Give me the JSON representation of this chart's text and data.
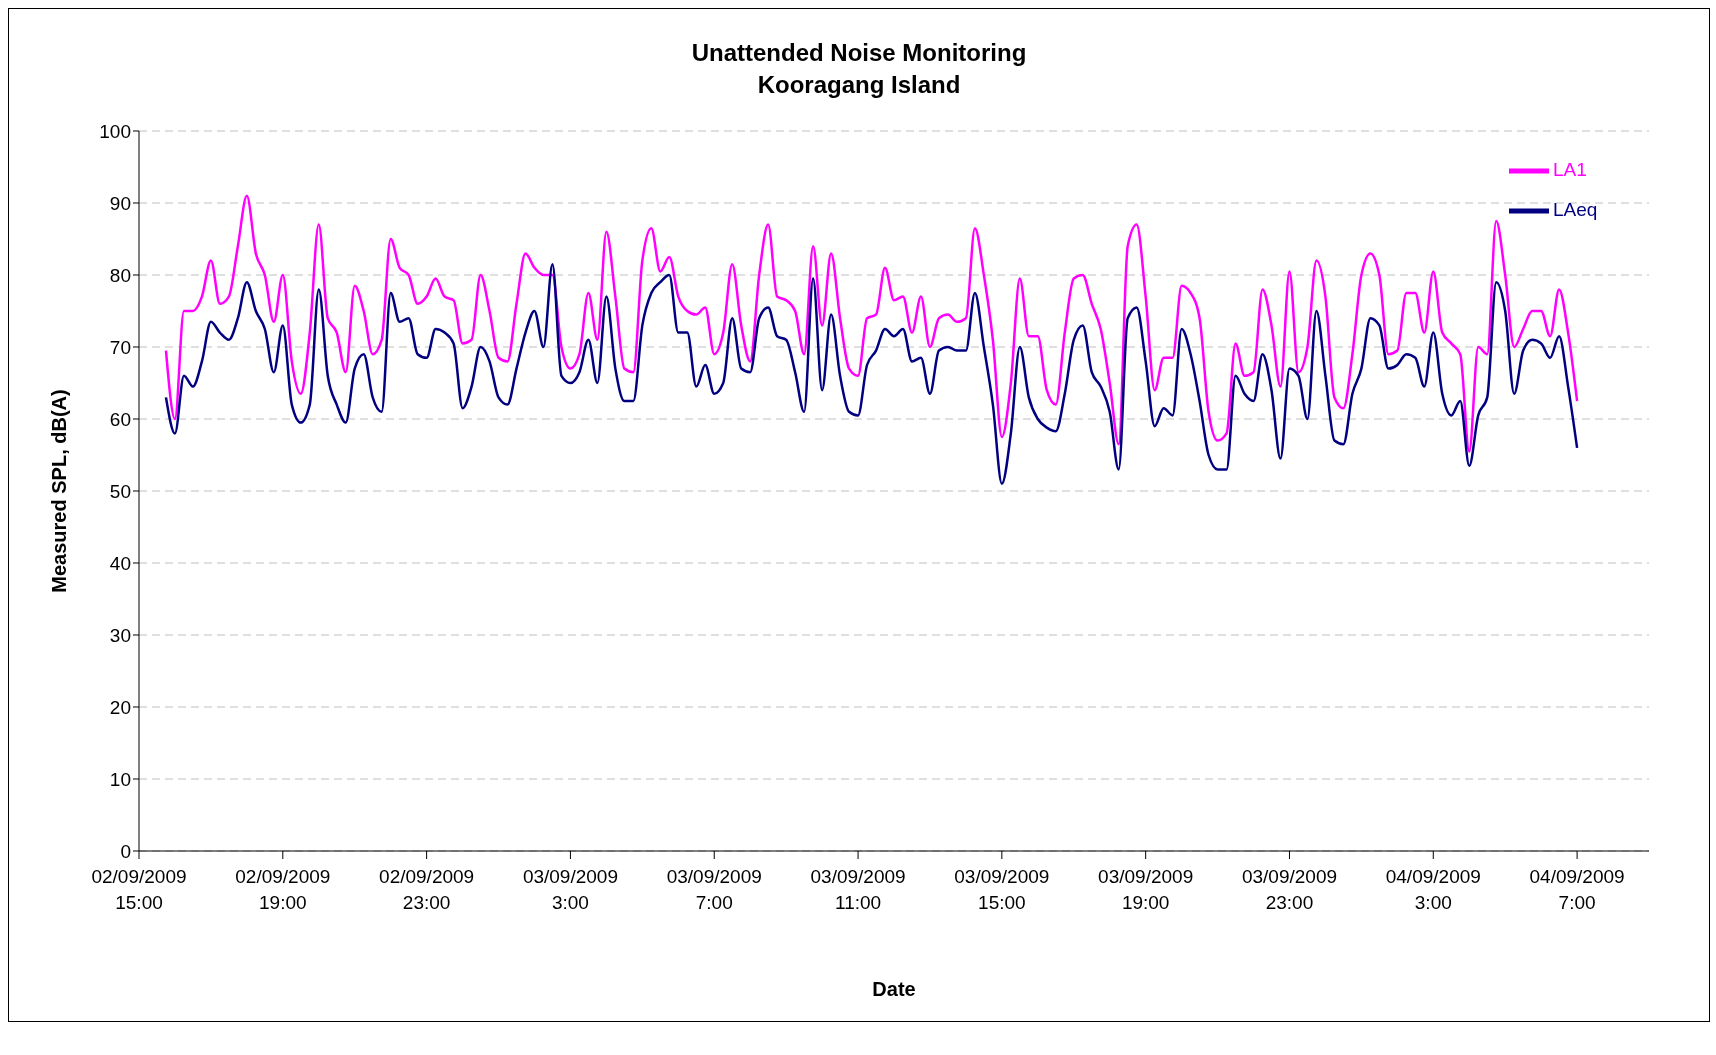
{
  "chart_data": {
    "type": "line",
    "title": "Unattended Noise Monitoring",
    "subtitle": "Kooragang Island",
    "xlabel": "Date",
    "ylabel": "Measured SPL, dB(A)",
    "x": [
      "2009-09-02T15:45",
      "2009-09-02T16:00",
      "2009-09-02T16:15",
      "2009-09-02T16:30",
      "2009-09-02T16:45",
      "2009-09-02T17:00",
      "2009-09-02T17:15",
      "2009-09-02T17:30",
      "2009-09-02T17:45",
      "2009-09-02T18:00",
      "2009-09-02T18:15",
      "2009-09-02T18:30",
      "2009-09-02T18:45",
      "2009-09-02T19:00",
      "2009-09-02T19:15",
      "2009-09-02T19:30",
      "2009-09-02T19:45",
      "2009-09-02T20:00",
      "2009-09-02T20:15",
      "2009-09-02T20:30",
      "2009-09-02T20:45",
      "2009-09-02T21:00",
      "2009-09-02T21:15",
      "2009-09-02T21:30",
      "2009-09-02T21:45",
      "2009-09-02T22:00",
      "2009-09-02T22:15",
      "2009-09-02T22:30",
      "2009-09-02T22:45",
      "2009-09-02T23:00",
      "2009-09-02T23:15",
      "2009-09-02T23:30",
      "2009-09-02T23:45",
      "2009-09-03T00:00",
      "2009-09-03T00:15",
      "2009-09-03T00:30",
      "2009-09-03T00:45",
      "2009-09-03T01:00",
      "2009-09-03T01:15",
      "2009-09-03T01:30",
      "2009-09-03T01:45",
      "2009-09-03T02:00",
      "2009-09-03T02:15",
      "2009-09-03T02:30",
      "2009-09-03T02:45",
      "2009-09-03T03:00",
      "2009-09-03T03:15",
      "2009-09-03T03:30",
      "2009-09-03T03:45",
      "2009-09-03T04:00",
      "2009-09-03T04:15",
      "2009-09-03T04:30",
      "2009-09-03T04:45",
      "2009-09-03T05:00",
      "2009-09-03T05:15",
      "2009-09-03T05:30",
      "2009-09-03T05:45",
      "2009-09-03T06:00",
      "2009-09-03T06:15",
      "2009-09-03T06:30",
      "2009-09-03T06:45",
      "2009-09-03T07:00",
      "2009-09-03T07:15",
      "2009-09-03T07:30",
      "2009-09-03T07:45",
      "2009-09-03T08:00",
      "2009-09-03T08:15",
      "2009-09-03T08:30",
      "2009-09-03T08:45",
      "2009-09-03T09:00",
      "2009-09-03T09:15",
      "2009-09-03T09:30",
      "2009-09-03T09:45",
      "2009-09-03T10:00",
      "2009-09-03T10:15",
      "2009-09-03T10:30",
      "2009-09-03T10:45",
      "2009-09-03T11:00",
      "2009-09-03T11:15",
      "2009-09-03T11:30",
      "2009-09-03T11:45",
      "2009-09-03T12:00",
      "2009-09-03T12:15",
      "2009-09-03T12:30",
      "2009-09-03T12:45",
      "2009-09-03T13:00",
      "2009-09-03T13:15",
      "2009-09-03T13:30",
      "2009-09-03T13:45",
      "2009-09-03T14:00",
      "2009-09-03T14:15",
      "2009-09-03T14:30",
      "2009-09-03T14:45",
      "2009-09-03T15:00",
      "2009-09-03T15:15",
      "2009-09-03T15:30",
      "2009-09-03T15:45",
      "2009-09-03T16:00",
      "2009-09-03T16:15",
      "2009-09-03T16:30",
      "2009-09-03T16:45",
      "2009-09-03T17:00",
      "2009-09-03T17:15",
      "2009-09-03T17:30",
      "2009-09-03T17:45",
      "2009-09-03T18:00",
      "2009-09-03T18:15",
      "2009-09-03T18:30",
      "2009-09-03T18:45",
      "2009-09-03T19:00",
      "2009-09-03T19:15",
      "2009-09-03T19:30",
      "2009-09-03T19:45",
      "2009-09-03T20:00",
      "2009-09-03T20:15",
      "2009-09-03T20:30",
      "2009-09-03T20:45",
      "2009-09-03T21:00",
      "2009-09-03T21:15",
      "2009-09-03T21:30",
      "2009-09-03T21:45",
      "2009-09-03T22:00",
      "2009-09-03T22:15",
      "2009-09-03T22:30",
      "2009-09-03T22:45",
      "2009-09-03T23:00",
      "2009-09-03T23:15",
      "2009-09-03T23:30",
      "2009-09-03T23:45",
      "2009-09-04T00:00",
      "2009-09-04T00:15",
      "2009-09-04T00:30",
      "2009-09-04T00:45",
      "2009-09-04T01:00",
      "2009-09-04T01:15",
      "2009-09-04T01:30",
      "2009-09-04T01:45",
      "2009-09-04T02:00",
      "2009-09-04T02:15",
      "2009-09-04T02:30",
      "2009-09-04T02:45",
      "2009-09-04T03:00",
      "2009-09-04T03:15",
      "2009-09-04T03:30",
      "2009-09-04T03:45",
      "2009-09-04T04:00",
      "2009-09-04T04:15",
      "2009-09-04T04:30",
      "2009-09-04T04:45",
      "2009-09-04T05:00",
      "2009-09-04T05:15",
      "2009-09-04T05:30",
      "2009-09-04T05:45",
      "2009-09-04T06:00",
      "2009-09-04T06:15",
      "2009-09-04T06:30",
      "2009-09-04T06:45",
      "2009-09-04T07:00"
    ],
    "series": [
      {
        "name": "LA1",
        "color": "#ff00ff",
        "values": [
          69.5,
          60,
          75,
          75,
          77,
          82,
          76,
          77,
          84,
          91,
          83,
          80,
          73.5,
          80,
          68,
          63.5,
          72,
          87,
          74,
          72,
          66.5,
          78.5,
          75,
          69,
          71,
          85,
          81,
          80,
          76,
          77,
          79.5,
          77,
          76.5,
          70.5,
          71,
          80,
          75,
          68.5,
          68,
          76,
          83,
          81,
          80,
          80,
          70,
          67,
          69,
          77.5,
          71,
          86,
          77,
          67,
          66.5,
          82,
          86.5,
          80.5,
          82.5,
          77,
          75,
          74.5,
          75.5,
          69,
          72,
          81.5,
          73,
          68,
          80,
          87,
          77,
          76.5,
          75,
          69,
          84,
          73,
          83,
          74,
          67,
          66,
          74,
          74.5,
          81,
          76.5,
          77,
          72,
          77,
          70,
          74,
          74.5,
          73.5,
          74,
          86.5,
          80,
          71,
          57.5,
          65,
          79.5,
          71.5,
          71.5,
          64,
          62,
          72,
          79.5,
          80,
          76,
          72.5,
          65,
          56.5,
          84,
          87,
          77,
          64,
          68.5,
          68.5,
          78.5,
          77.5,
          74,
          61,
          57,
          58,
          70.5,
          66,
          66.5,
          78,
          73,
          64.5,
          80.5,
          66.5,
          70,
          82,
          77,
          63,
          61.5,
          69,
          80,
          83,
          80,
          69,
          69.5,
          77.5,
          77.5,
          72,
          80.5,
          72,
          70.5,
          69,
          55.5,
          70,
          69,
          87.5,
          80,
          70,
          72.5,
          75,
          75,
          71.5,
          78,
          72,
          62.5
        ]
      },
      {
        "name": "LAeq",
        "color": "#000080",
        "values": [
          63,
          58,
          66,
          64.5,
          68,
          73.5,
          72,
          71,
          74,
          79,
          75,
          72.5,
          66.5,
          73,
          62,
          59.5,
          62,
          78,
          66,
          62,
          59.5,
          67,
          69,
          63,
          61,
          77.5,
          73.5,
          74,
          69,
          68.5,
          72.5,
          72,
          70.5,
          61.5,
          64.5,
          70,
          68,
          63,
          62,
          67,
          72,
          75,
          70,
          81.5,
          66,
          65,
          66.5,
          71,
          65,
          77,
          67,
          62.5,
          62.5,
          73,
          77.5,
          79,
          80,
          72,
          72,
          64.5,
          67.5,
          63.5,
          65,
          74,
          67,
          66.5,
          74,
          75.5,
          71.5,
          71,
          66.5,
          61,
          79.5,
          64,
          74.5,
          66,
          61,
          60.5,
          67.5,
          69.5,
          72.5,
          71.5,
          72.5,
          68,
          68.5,
          63.5,
          69.5,
          70,
          69.5,
          69.5,
          77.5,
          70,
          62,
          51,
          58,
          70,
          63,
          60,
          58.8,
          58.3,
          63.5,
          71,
          73,
          66.5,
          64.5,
          61,
          53,
          74,
          75.5,
          68,
          59,
          61.5,
          60.5,
          72.5,
          69,
          62.5,
          55,
          53,
          53,
          66,
          63.5,
          62.5,
          69,
          64,
          54.5,
          67,
          66,
          60,
          75,
          66,
          57,
          56.5,
          63.5,
          67,
          74,
          73,
          67,
          67.5,
          69,
          68.5,
          64.5,
          72,
          63.5,
          60.5,
          62.5,
          53.5,
          60.5,
          63,
          79,
          75,
          63.5,
          69.5,
          71,
          70.5,
          68.5,
          71.5,
          64.5,
          56
        ]
      }
    ],
    "xlim": [
      "2009-09-02T15:00",
      "2009-09-04T09:00"
    ],
    "xticks": [
      {
        "value": "2009-09-02T15:00",
        "label": "02/09/2009 15:00"
      },
      {
        "value": "2009-09-02T19:00",
        "label": "02/09/2009 19:00"
      },
      {
        "value": "2009-09-02T23:00",
        "label": "02/09/2009 23:00"
      },
      {
        "value": "2009-09-03T03:00",
        "label": "03/09/2009 3:00"
      },
      {
        "value": "2009-09-03T07:00",
        "label": "03/09/2009 7:00"
      },
      {
        "value": "2009-09-03T11:00",
        "label": "03/09/2009 11:00"
      },
      {
        "value": "2009-09-03T15:00",
        "label": "03/09/2009 15:00"
      },
      {
        "value": "2009-09-03T19:00",
        "label": "03/09/2009 19:00"
      },
      {
        "value": "2009-09-03T23:00",
        "label": "03/09/2009 23:00"
      },
      {
        "value": "2009-09-04T03:00",
        "label": "04/09/2009 3:00"
      },
      {
        "value": "2009-09-04T07:00",
        "label": "04/09/2009 7:00"
      }
    ],
    "ylim": [
      0,
      100
    ],
    "yticks": [
      0,
      10,
      20,
      30,
      40,
      50,
      60,
      70,
      80,
      90,
      100
    ],
    "grid": "y",
    "legend": "top right",
    "marker": "none",
    "line_style": "solid"
  }
}
